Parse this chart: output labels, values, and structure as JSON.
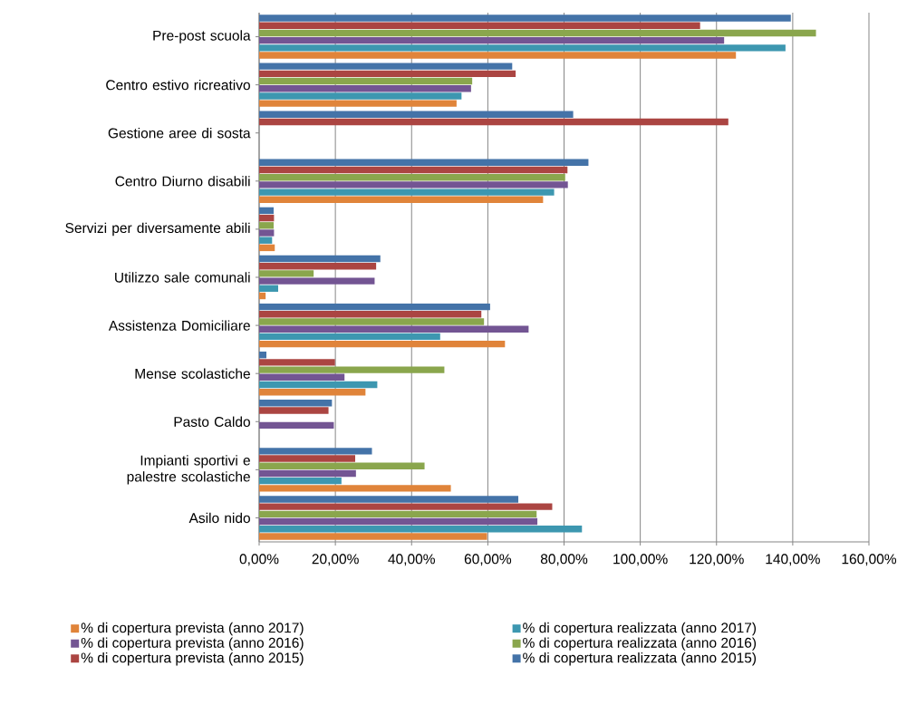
{
  "chart_data": {
    "type": "bar",
    "orientation": "horizontal",
    "categories": [
      "Pre-post scuola",
      "Centro estivo ricreativo",
      "Gestione aree di sosta",
      "Centro Diurno disabili",
      "Servizi per diversamente abili",
      "Utilizzo sale comunali",
      "Assistenza Domiciliare",
      "Mense scolastiche",
      "Pasto Caldo",
      "Impianti sportivi e palestre scolastiche",
      "Asilo nido"
    ],
    "series": [
      {
        "name": "% di copertura prevista (anno 2017)",
        "color": "#e0843a",
        "values": [
          125.1,
          51.8,
          null,
          74.5,
          4.1,
          1.7,
          64.5,
          27.9,
          null,
          50.3,
          59.8
        ]
      },
      {
        "name": "% di copertura realizzata (anno 2017)",
        "color": "#3d97b0",
        "values": [
          138.1,
          53.1,
          null,
          77.4,
          3.4,
          5.0,
          47.5,
          31.0,
          null,
          21.6,
          84.7
        ]
      },
      {
        "name": "% di copertura prevista (anno 2016)",
        "color": "#735593",
        "values": [
          122.0,
          55.6,
          null,
          81.0,
          3.9,
          30.3,
          70.7,
          22.4,
          19.6,
          25.4,
          73.0
        ]
      },
      {
        "name": "% di copertura realizzata (anno 2016)",
        "color": "#8aa64d",
        "values": [
          146.1,
          55.9,
          null,
          80.3,
          3.8,
          14.3,
          59.0,
          48.6,
          null,
          43.4,
          72.8
        ]
      },
      {
        "name": "% di copertura prevista (anno 2015)",
        "color": "#ab4542",
        "values": [
          115.7,
          67.3,
          123.1,
          80.9,
          3.9,
          30.7,
          58.3,
          19.9,
          18.2,
          25.2,
          76.9
        ]
      },
      {
        "name": "% di copertura realizzata (anno 2015)",
        "color": "#4473a8",
        "values": [
          139.5,
          66.4,
          82.4,
          86.4,
          3.8,
          31.8,
          60.6,
          1.9,
          19.1,
          29.6,
          68.0
        ]
      }
    ],
    "xlim": [
      0,
      160
    ],
    "xticks": [
      {
        "value": 0,
        "label": "0,00%"
      },
      {
        "value": 20,
        "label": "20,00%"
      },
      {
        "value": 40,
        "label": "40,00%"
      },
      {
        "value": 60,
        "label": "60,00%"
      },
      {
        "value": 80,
        "label": "80,00%"
      },
      {
        "value": 100,
        "label": "100,00%"
      },
      {
        "value": 120,
        "label": "120,00%"
      },
      {
        "value": 140,
        "label": "140,00%"
      },
      {
        "value": 160,
        "label": "160,00%"
      }
    ],
    "grid": "x",
    "legend": "bottom"
  }
}
